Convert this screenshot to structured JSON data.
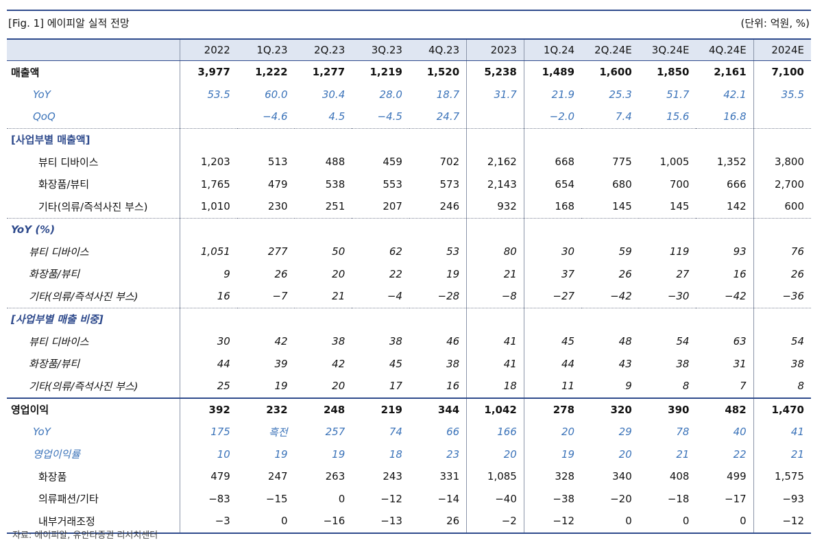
{
  "title": "[Fig. 1] 에이피알 실적 전망",
  "unit": "(단위: 억원, %)",
  "columns": [
    "2022",
    "1Q.23",
    "2Q.23",
    "3Q.23",
    "4Q.23",
    "2023",
    "1Q.24",
    "2Q.24E",
    "3Q.24E",
    "4Q.24E",
    "2024E"
  ],
  "rows": [
    {
      "label": "매출액",
      "cls": "bold",
      "values": [
        "3,977",
        "1,222",
        "1,277",
        "1,219",
        "1,520",
        "5,238",
        "1,489",
        "1,600",
        "1,850",
        "2,161",
        "7,100"
      ]
    },
    {
      "label": "YoY",
      "cls": "sub",
      "values": [
        "53.5",
        "60.0",
        "30.4",
        "28.0",
        "18.7",
        "31.7",
        "21.9",
        "25.3",
        "51.7",
        "42.1",
        "35.5"
      ]
    },
    {
      "label": "QoQ",
      "cls": "sub",
      "values": [
        "",
        "−4.6",
        "4.5",
        "−4.5",
        "24.7",
        "",
        "−2.0",
        "7.4",
        "15.6",
        "16.8",
        ""
      ]
    },
    {
      "label": "[사업부별 매출액]",
      "cls": "section dotted",
      "values": [
        "",
        "",
        "",
        "",
        "",
        "",
        "",
        "",
        "",
        "",
        ""
      ]
    },
    {
      "label": "뷰티 디바이스",
      "cls": "plain",
      "values": [
        "1,203",
        "513",
        "488",
        "459",
        "702",
        "2,162",
        "668",
        "775",
        "1,005",
        "1,352",
        "3,800"
      ]
    },
    {
      "label": "화장품/뷰티",
      "cls": "plain",
      "values": [
        "1,765",
        "479",
        "538",
        "553",
        "573",
        "2,143",
        "654",
        "680",
        "700",
        "666",
        "2,700"
      ]
    },
    {
      "label": "기타(의류/즉석사진 부스)",
      "cls": "plain",
      "values": [
        "1,010",
        "230",
        "251",
        "207",
        "246",
        "932",
        "168",
        "145",
        "145",
        "142",
        "600"
      ]
    },
    {
      "label": "YoY (%)",
      "cls": "section dotted ital-head",
      "values": [
        "",
        "",
        "",
        "",
        "",
        "",
        "",
        "",
        "",
        "",
        ""
      ]
    },
    {
      "label": "뷰티 디바이스",
      "cls": "ital",
      "values": [
        "1,051",
        "277",
        "50",
        "62",
        "53",
        "80",
        "30",
        "59",
        "119",
        "93",
        "76"
      ]
    },
    {
      "label": "화장품/뷰티",
      "cls": "ital",
      "values": [
        "9",
        "26",
        "20",
        "22",
        "19",
        "21",
        "37",
        "26",
        "27",
        "16",
        "26"
      ]
    },
    {
      "label": "기타(의류/즉석사진 부스)",
      "cls": "ital",
      "values": [
        "16",
        "−7",
        "21",
        "−4",
        "−28",
        "−8",
        "−27",
        "−42",
        "−30",
        "−42",
        "−36"
      ]
    },
    {
      "label": "[사업부별 매출 비중]",
      "cls": "section dotted ital-head",
      "values": [
        "",
        "",
        "",
        "",
        "",
        "",
        "",
        "",
        "",
        "",
        ""
      ]
    },
    {
      "label": "뷰티 디바이스",
      "cls": "ital",
      "values": [
        "30",
        "42",
        "38",
        "38",
        "46",
        "41",
        "45",
        "48",
        "54",
        "63",
        "54"
      ]
    },
    {
      "label": "화장품/뷰티",
      "cls": "ital",
      "values": [
        "44",
        "39",
        "42",
        "45",
        "38",
        "41",
        "44",
        "43",
        "38",
        "31",
        "38"
      ]
    },
    {
      "label": "기타(의류/즉석사진 부스)",
      "cls": "ital",
      "values": [
        "25",
        "19",
        "20",
        "17",
        "16",
        "18",
        "11",
        "9",
        "8",
        "7",
        "8"
      ]
    },
    {
      "label": "영업이익",
      "cls": "bold solid",
      "values": [
        "392",
        "232",
        "248",
        "219",
        "344",
        "1,042",
        "278",
        "320",
        "390",
        "482",
        "1,470"
      ]
    },
    {
      "label": "YoY",
      "cls": "sub",
      "values": [
        "175",
        "흑전",
        "257",
        "74",
        "66",
        "166",
        "20",
        "29",
        "78",
        "40",
        "41"
      ]
    },
    {
      "label": "영업이익률",
      "cls": "sub",
      "values": [
        "10",
        "19",
        "19",
        "18",
        "23",
        "20",
        "19",
        "20",
        "21",
        "22",
        "21"
      ]
    },
    {
      "label": "화장품",
      "cls": "plain",
      "values": [
        "479",
        "247",
        "263",
        "243",
        "331",
        "1,085",
        "328",
        "340",
        "408",
        "499",
        "1,575"
      ]
    },
    {
      "label": "의류패션/기타",
      "cls": "plain",
      "values": [
        "−83",
        "−15",
        "0",
        "−12",
        "−14",
        "−40",
        "−38",
        "−20",
        "−18",
        "−17",
        "−93"
      ]
    },
    {
      "label": "내부거래조정",
      "cls": "plain last",
      "values": [
        "−3",
        "0",
        "−16",
        "−13",
        "26",
        "−2",
        "−12",
        "0",
        "0",
        "0",
        "−12"
      ]
    }
  ],
  "source": "자료: 에이피알, 유안타증권 리서치센터"
}
